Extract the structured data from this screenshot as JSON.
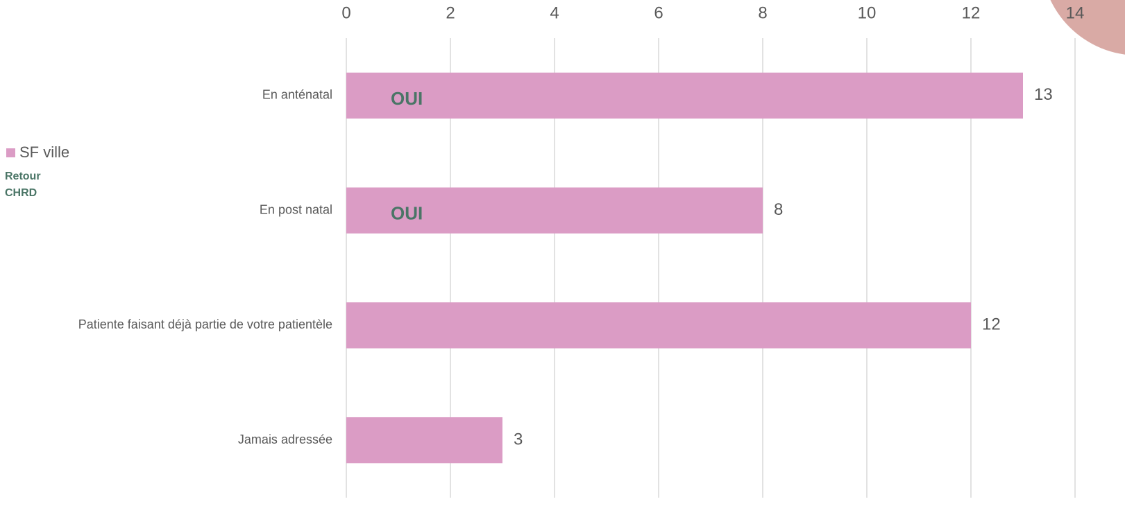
{
  "chart_data": {
    "type": "bar",
    "orientation": "horizontal",
    "categories": [
      "En anténatal",
      "En post natal",
      "Patiente faisant déjà partie de votre patientèle",
      "Jamais adressée"
    ],
    "series": [
      {
        "name": "SF ville",
        "color": "#db9cc5",
        "values": [
          13,
          8,
          12,
          3
        ]
      }
    ],
    "xlim": [
      0,
      14
    ],
    "xticks": [
      0,
      2,
      4,
      6,
      8,
      10,
      12,
      14
    ],
    "grid": true,
    "legend": "left",
    "legend_note": [
      "Retour",
      "CHRD"
    ],
    "annotations": [
      "OUI",
      "OUI"
    ]
  }
}
